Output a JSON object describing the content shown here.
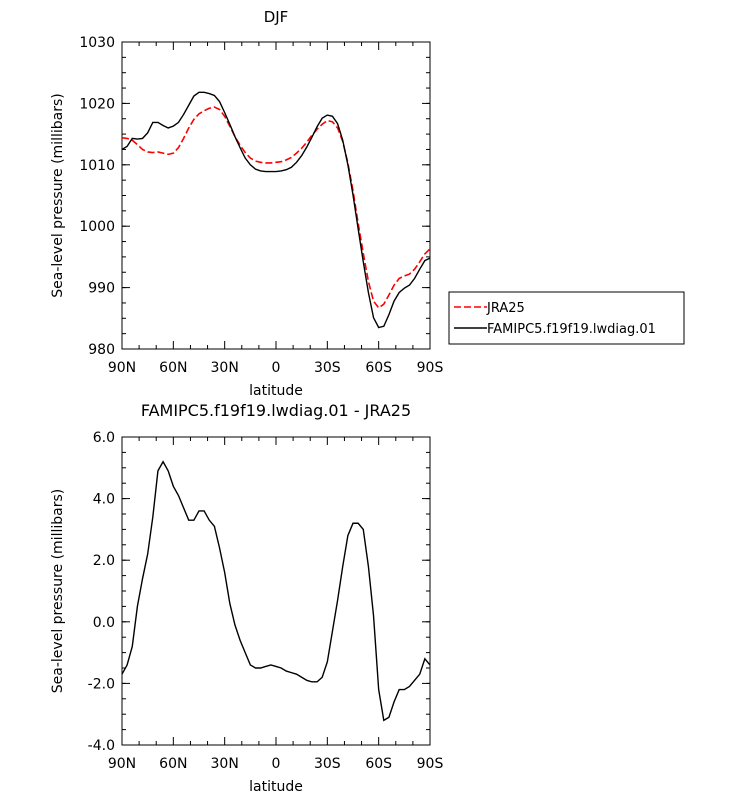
{
  "chart_data": [
    {
      "type": "line",
      "title": "DJF",
      "xlabel": "latitude",
      "ylabel": "Sea-level pressure (millibars)",
      "xlim": [
        90,
        -90
      ],
      "ylim": [
        980,
        1030
      ],
      "x_ticks": [
        90,
        60,
        30,
        0,
        -30,
        -60,
        -90
      ],
      "x_tick_labels": [
        "90N",
        "60N",
        "30N",
        "0",
        "30S",
        "60S",
        "90S"
      ],
      "y_ticks": [
        980,
        990,
        1000,
        1010,
        1020,
        1030
      ],
      "y_tick_labels": [
        "980",
        "990",
        "1000",
        "1010",
        "1020",
        "1030"
      ],
      "legend_position": "outside-right",
      "series": [
        {
          "name": "JRA25",
          "color": "#ff0000",
          "dash": true,
          "x": [
            90,
            87,
            84,
            81,
            78,
            75,
            72,
            69,
            66,
            63,
            60,
            57,
            54,
            51,
            48,
            45,
            42,
            39,
            36,
            33,
            30,
            27,
            24,
            21,
            18,
            15,
            12,
            9,
            6,
            3,
            0,
            -3,
            -6,
            -9,
            -12,
            -15,
            -18,
            -21,
            -24,
            -27,
            -30,
            -33,
            -36,
            -39,
            -42,
            -45,
            -48,
            -51,
            -54,
            -57,
            -60,
            -63,
            -66,
            -69,
            -72,
            -75,
            -78,
            -81,
            -84,
            -87,
            -90
          ],
          "y": [
            1014.4,
            1014.3,
            1014.0,
            1013.3,
            1012.5,
            1012.1,
            1012.0,
            1012.1,
            1011.9,
            1011.7,
            1011.9,
            1012.8,
            1014.3,
            1016.0,
            1017.4,
            1018.3,
            1018.8,
            1019.2,
            1019.4,
            1019.0,
            1017.9,
            1016.3,
            1014.6,
            1013.2,
            1012.0,
            1011.1,
            1010.6,
            1010.4,
            1010.3,
            1010.3,
            1010.4,
            1010.5,
            1010.8,
            1011.2,
            1011.9,
            1012.7,
            1013.7,
            1014.8,
            1015.8,
            1016.6,
            1017.2,
            1017.0,
            1016.0,
            1013.8,
            1010.3,
            1005.8,
            1000.5,
            995.6,
            991.0,
            987.8,
            986.7,
            987.3,
            988.8,
            990.4,
            991.5,
            991.9,
            992.2,
            993.0,
            994.2,
            995.5,
            996.3
          ]
        },
        {
          "name": "FAMIPC5.f19f19.lwdiag.01",
          "color": "#000000",
          "dash": false,
          "x": [
            90,
            87,
            84,
            81,
            78,
            75,
            72,
            69,
            66,
            63,
            60,
            57,
            54,
            51,
            48,
            45,
            42,
            39,
            36,
            33,
            30,
            27,
            24,
            21,
            18,
            15,
            12,
            9,
            6,
            3,
            0,
            -3,
            -6,
            -9,
            -12,
            -15,
            -18,
            -21,
            -24,
            -27,
            -30,
            -33,
            -36,
            -39,
            -42,
            -45,
            -48,
            -51,
            -54,
            -57,
            -60,
            -63,
            -66,
            -69,
            -72,
            -75,
            -78,
            -81,
            -84,
            -87,
            -90
          ],
          "y": [
            1012.5,
            1013.0,
            1014.3,
            1014.2,
            1014.3,
            1015.2,
            1016.9,
            1016.9,
            1016.4,
            1016.0,
            1016.3,
            1016.9,
            1018.2,
            1019.7,
            1021.2,
            1021.8,
            1021.8,
            1021.6,
            1021.3,
            1020.3,
            1018.5,
            1016.6,
            1014.6,
            1012.8,
            1011.1,
            1010.0,
            1009.3,
            1009.0,
            1008.9,
            1008.9,
            1008.9,
            1009.0,
            1009.2,
            1009.6,
            1010.4,
            1011.5,
            1012.9,
            1014.5,
            1016.2,
            1017.6,
            1018.1,
            1017.9,
            1016.7,
            1014.0,
            1010.0,
            1005.1,
            999.6,
            994.2,
            989.2,
            985.1,
            983.5,
            983.7,
            985.6,
            987.8,
            989.2,
            989.9,
            990.4,
            991.5,
            993.0,
            994.4,
            994.8
          ]
        }
      ]
    },
    {
      "type": "line",
      "title": "FAMIPC5.f19f19.lwdiag.01 - JRA25",
      "xlabel": "latitude",
      "ylabel": "Sea-level pressure (millibars)",
      "xlim": [
        90,
        -90
      ],
      "ylim": [
        -4.0,
        6.0
      ],
      "x_ticks": [
        90,
        60,
        30,
        0,
        -30,
        -60,
        -90
      ],
      "x_tick_labels": [
        "90N",
        "60N",
        "30N",
        "0",
        "30S",
        "60S",
        "90S"
      ],
      "y_ticks": [
        -4.0,
        -2.0,
        0.0,
        2.0,
        4.0,
        6.0
      ],
      "y_tick_labels": [
        "-4.0",
        "-2.0",
        "0.0",
        "2.0",
        "4.0",
        "6.0"
      ],
      "series": [
        {
          "color": "#000000",
          "dash": false,
          "x": [
            90,
            87,
            84,
            81,
            78,
            75,
            72,
            69,
            66,
            63,
            60,
            57,
            54,
            51,
            48,
            45,
            42,
            39,
            36,
            33,
            30,
            27,
            24,
            21,
            18,
            15,
            12,
            9,
            6,
            3,
            0,
            -3,
            -6,
            -9,
            -12,
            -15,
            -18,
            -21,
            -24,
            -27,
            -30,
            -33,
            -36,
            -39,
            -42,
            -45,
            -48,
            -51,
            -54,
            -57,
            -60,
            -63,
            -66,
            -69,
            -72,
            -75,
            -78,
            -81,
            -84,
            -87,
            -90
          ],
          "y": [
            -1.7,
            -1.4,
            -0.8,
            0.5,
            1.4,
            2.2,
            3.4,
            4.9,
            5.2,
            4.9,
            4.4,
            4.1,
            3.7,
            3.3,
            3.3,
            3.6,
            3.6,
            3.3,
            3.1,
            2.4,
            1.6,
            0.6,
            -0.1,
            -0.6,
            -1.0,
            -1.4,
            -1.5,
            -1.5,
            -1.45,
            -1.4,
            -1.45,
            -1.5,
            -1.6,
            -1.65,
            -1.7,
            -1.8,
            -1.9,
            -1.95,
            -1.95,
            -1.8,
            -1.3,
            -0.3,
            0.7,
            1.8,
            2.8,
            3.2,
            3.2,
            3.0,
            1.8,
            0.2,
            -2.2,
            -3.2,
            -3.1,
            -2.6,
            -2.2,
            -2.2,
            -2.1,
            -1.9,
            -1.7,
            -1.2,
            -1.4
          ]
        }
      ]
    }
  ]
}
